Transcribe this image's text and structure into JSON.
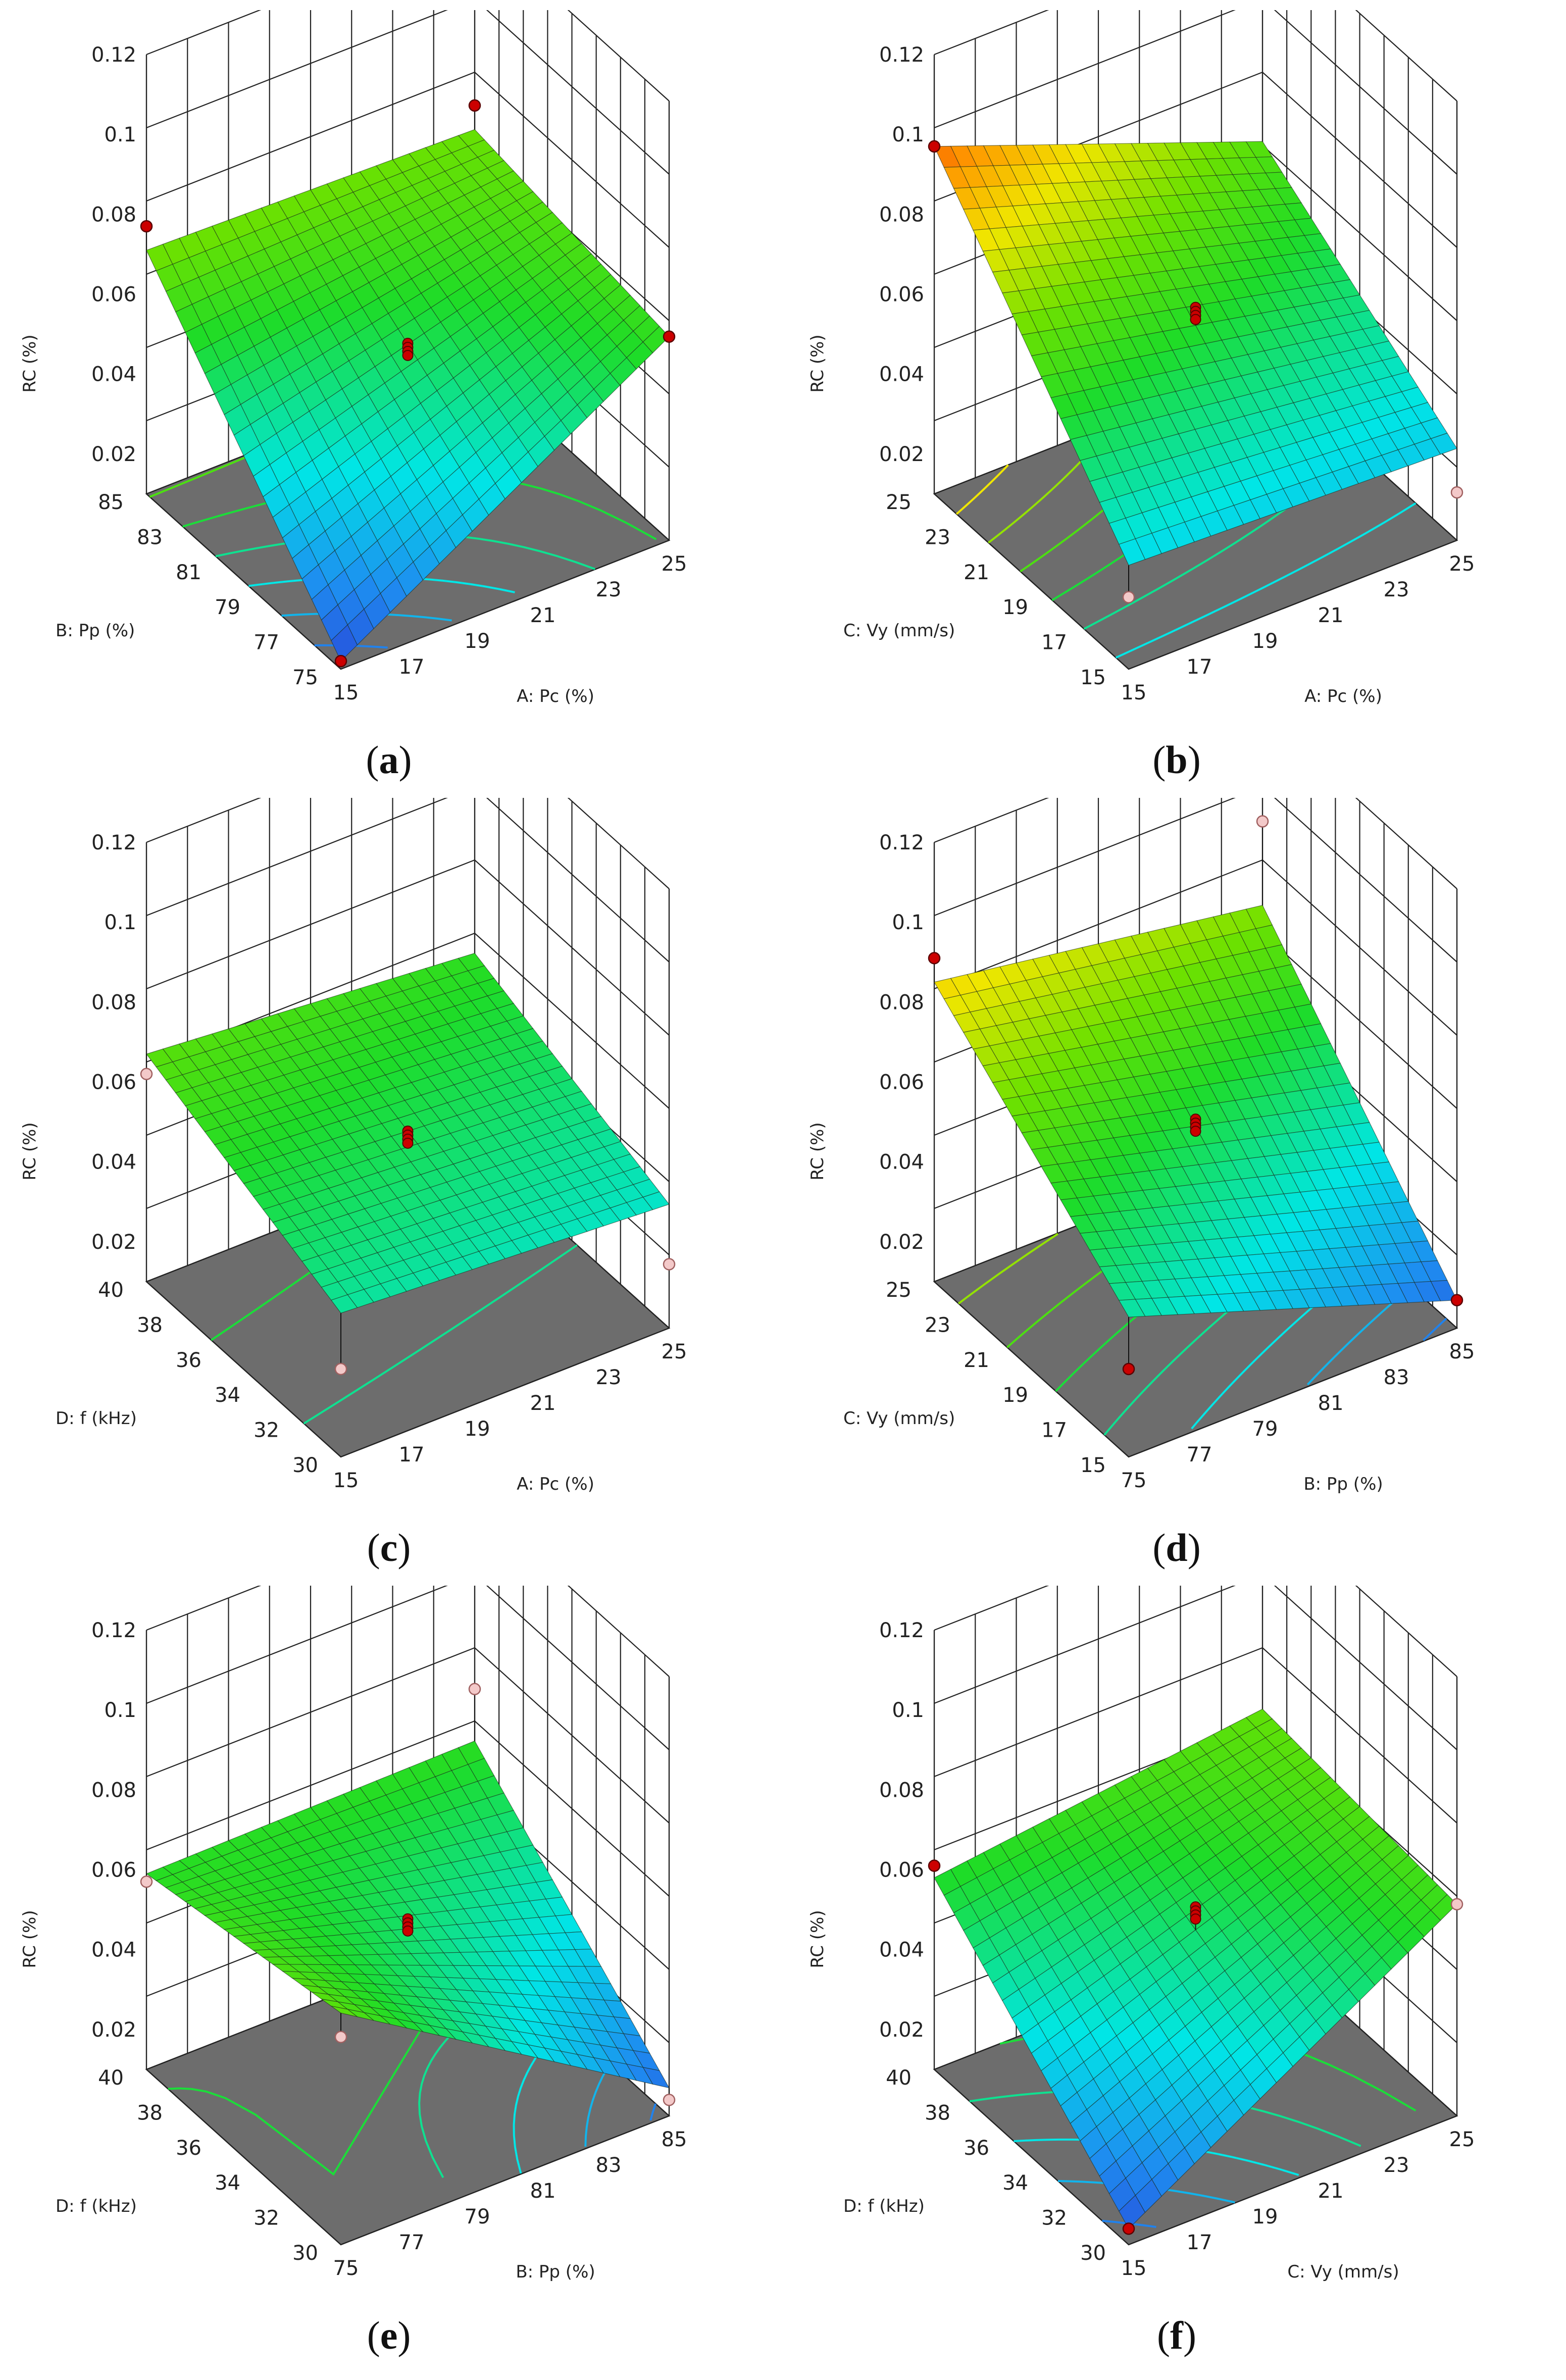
{
  "colors": {
    "floor": "#6d6d6d",
    "grid": "#222222",
    "design_point_high": "#cc0000",
    "design_point_low": "#f3c9c9"
  },
  "chart_data": [
    {
      "id": "a",
      "caption": "a",
      "type": "surface3d",
      "zlabel": "RC (%)",
      "zticks": [
        "0.02",
        "0.04",
        "0.06",
        "0.08",
        "0.1",
        "0.12"
      ],
      "zlim": [
        0.01,
        0.12
      ],
      "xlabel": "A: Pc (%)",
      "xticks": [
        "15",
        "17",
        "19",
        "21",
        "23",
        "25"
      ],
      "xlim": [
        15,
        25
      ],
      "ylabel": "B: Pp (%)",
      "yticks": [
        "75",
        "77",
        "79",
        "81",
        "83",
        "85"
      ],
      "ylim": [
        75,
        85
      ],
      "surface_corners": {
        "x_low_y_low": 0.012,
        "x_high_y_low": 0.061,
        "x_low_y_high": 0.071,
        "x_high_y_high": 0.069
      },
      "points": [
        {
          "x": 15,
          "y": 85,
          "z": 0.077,
          "above": true
        },
        {
          "x": 25,
          "y": 85,
          "z": 0.075,
          "above": true
        },
        {
          "x": 25,
          "y": 75,
          "z": 0.061,
          "above": true
        },
        {
          "x": 15,
          "y": 75,
          "z": 0.012,
          "above": true
        },
        {
          "x": 20,
          "y": 80,
          "z": 0.052,
          "above": true
        }
      ]
    },
    {
      "id": "b",
      "caption": "b",
      "type": "surface3d",
      "zlabel": "RC (%)",
      "zticks": [
        "0.02",
        "0.04",
        "0.06",
        "0.08",
        "0.1",
        "0.12"
      ],
      "zlim": [
        0.01,
        0.12
      ],
      "xlabel": "A: Pc (%)",
      "xticks": [
        "15",
        "17",
        "19",
        "21",
        "23",
        "25"
      ],
      "xlim": [
        15,
        25
      ],
      "ylabel": "C: Vy (mm/s)",
      "yticks": [
        "15",
        "17",
        "19",
        "21",
        "23",
        "25"
      ],
      "ylim": [
        15,
        25
      ],
      "surface_corners": {
        "x_low_y_low": 0.036,
        "x_high_y_low": 0.033,
        "x_low_y_high": 0.097,
        "x_high_y_high": 0.066
      },
      "points": [
        {
          "x": 15,
          "y": 25,
          "z": 0.097,
          "above": true
        },
        {
          "x": 15,
          "y": 15,
          "z": 0.028,
          "above": false
        },
        {
          "x": 25,
          "y": 15,
          "z": 0.022,
          "above": false
        },
        {
          "x": 20,
          "y": 20,
          "z": 0.061,
          "above": true
        }
      ]
    },
    {
      "id": "c",
      "caption": "c",
      "type": "surface3d",
      "zlabel": "RC (%)",
      "zticks": [
        "0.02",
        "0.04",
        "0.06",
        "0.08",
        "0.1",
        "0.12"
      ],
      "zlim": [
        0.01,
        0.12
      ],
      "xlabel": "A: Pc (%)",
      "xticks": [
        "15",
        "17",
        "19",
        "21",
        "23",
        "25"
      ],
      "xlim": [
        15,
        25
      ],
      "ylabel": "D: f (kHz)",
      "yticks": [
        "30",
        "32",
        "34",
        "36",
        "38",
        "40"
      ],
      "ylim": [
        30,
        40
      ],
      "surface_corners": {
        "x_low_y_low": 0.046,
        "x_high_y_low": 0.041,
        "x_low_y_high": 0.067,
        "x_high_y_high": 0.06
      },
      "points": [
        {
          "x": 15,
          "y": 40,
          "z": 0.062,
          "above": false
        },
        {
          "x": 25,
          "y": 30,
          "z": 0.026,
          "above": false
        },
        {
          "x": 15,
          "y": 30,
          "z": 0.032,
          "above": false
        },
        {
          "x": 20,
          "y": 35,
          "z": 0.052,
          "above": true
        }
      ]
    },
    {
      "id": "d",
      "caption": "d",
      "type": "surface3d",
      "zlabel": "RC (%)",
      "zticks": [
        "0.02",
        "0.04",
        "0.06",
        "0.08",
        "0.1",
        "0.12"
      ],
      "zlim": [
        0.01,
        0.12
      ],
      "xlabel": "B: Pp (%)",
      "xticks": [
        "75",
        "77",
        "79",
        "81",
        "83",
        "85"
      ],
      "xlim": [
        75,
        85
      ],
      "ylabel": "C: Vy (mm/s)",
      "yticks": [
        "15",
        "17",
        "19",
        "21",
        "23",
        "25"
      ],
      "ylim": [
        15,
        25
      ],
      "surface_corners": {
        "x_low_y_low": 0.045,
        "x_high_y_low": 0.017,
        "x_low_y_high": 0.085,
        "x_high_y_high": 0.072
      },
      "points": [
        {
          "x": 75,
          "y": 25,
          "z": 0.091,
          "above": true
        },
        {
          "x": 85,
          "y": 25,
          "z": 0.093,
          "above": false
        },
        {
          "x": 85,
          "y": 15,
          "z": 0.017,
          "above": true
        },
        {
          "x": 75,
          "y": 15,
          "z": 0.032,
          "above": true
        },
        {
          "x": 80,
          "y": 20,
          "z": 0.055,
          "above": true
        }
      ]
    },
    {
      "id": "e",
      "caption": "e",
      "type": "surface3d",
      "zlabel": "RC (%)",
      "zticks": [
        "0.02",
        "0.04",
        "0.06",
        "0.08",
        "0.1",
        "0.12"
      ],
      "zlim": [
        0.01,
        0.12
      ],
      "xlabel": "B: Pp (%)",
      "xticks": [
        "75",
        "77",
        "79",
        "81",
        "83",
        "85"
      ],
      "xlim": [
        75,
        85
      ],
      "ylabel": "D: f (kHz)",
      "yticks": [
        "30",
        "32",
        "34",
        "36",
        "38",
        "40"
      ],
      "ylim": [
        30,
        40
      ],
      "surface_corners": {
        "x_low_y_low": 0.068,
        "x_high_y_low": 0.017,
        "x_low_y_high": 0.059,
        "x_high_y_high": 0.06
      },
      "points": [
        {
          "x": 75,
          "y": 40,
          "z": 0.057,
          "above": false
        },
        {
          "x": 85,
          "y": 40,
          "z": 0.073,
          "above": false
        },
        {
          "x": 85,
          "y": 30,
          "z": 0.014,
          "above": false
        },
        {
          "x": 75,
          "y": 30,
          "z": 0.062,
          "above": false
        },
        {
          "x": 80,
          "y": 35,
          "z": 0.052,
          "above": true
        }
      ]
    },
    {
      "id": "f",
      "caption": "f",
      "type": "surface3d",
      "zlabel": "RC (%)",
      "zticks": [
        "0.02",
        "0.04",
        "0.06",
        "0.08",
        "0.1",
        "0.12"
      ],
      "zlim": [
        0.01,
        0.12
      ],
      "xlabel": "C: Vy (mm/s)",
      "xticks": [
        "15",
        "17",
        "19",
        "21",
        "23",
        "25"
      ],
      "xlim": [
        15,
        25
      ],
      "ylabel": "D: f (kHz)",
      "yticks": [
        "30",
        "32",
        "34",
        "36",
        "38",
        "40"
      ],
      "ylim": [
        30,
        40
      ],
      "surface_corners": {
        "x_low_y_low": 0.014,
        "x_high_y_low": 0.063,
        "x_low_y_high": 0.058,
        "x_high_y_high": 0.068
      },
      "points": [
        {
          "x": 15,
          "y": 40,
          "z": 0.061,
          "above": true
        },
        {
          "x": 25,
          "y": 30,
          "z": 0.063,
          "above": false
        },
        {
          "x": 15,
          "y": 30,
          "z": 0.014,
          "above": true
        },
        {
          "x": 20,
          "y": 35,
          "z": 0.055,
          "above": true
        }
      ]
    }
  ]
}
